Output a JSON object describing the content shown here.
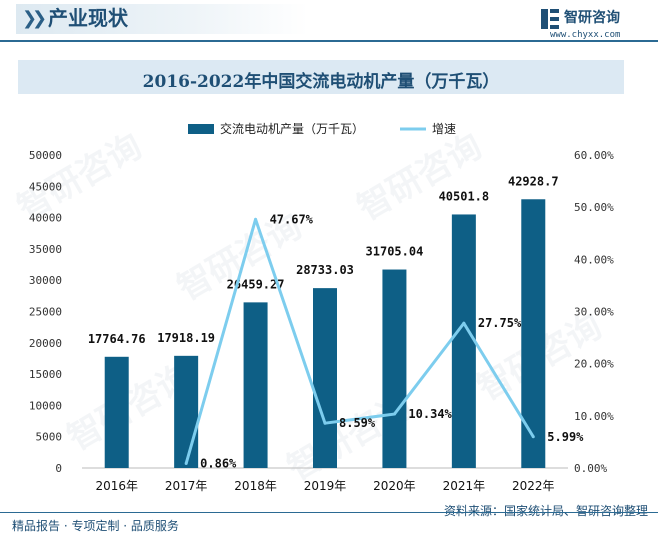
{
  "header": {
    "section_title": "产业现状",
    "brand_name": "智研咨询",
    "brand_url": "www.chyxx.com"
  },
  "colors": {
    "bar": "#0e5f86",
    "line": "#7dcdee",
    "text": "#1f4f75"
  },
  "chart_data": {
    "type": "bar",
    "title": "2016-2022年中国交流电动机产量（万千瓦）",
    "categories": [
      "2016年",
      "2017年",
      "2018年",
      "2019年",
      "2020年",
      "2021年",
      "2022年"
    ],
    "series": [
      {
        "name": "交流电动机产量（万千瓦）",
        "kind": "bar",
        "axis": "left",
        "values": [
          17764.76,
          17918.19,
          26459.27,
          28733.03,
          31705.04,
          40501.8,
          42928.7
        ],
        "labels": [
          "17764.76",
          "17918.19",
          "26459.27",
          "28733.03",
          "31705.04",
          "40501.8",
          "42928.7"
        ]
      },
      {
        "name": "增速",
        "kind": "line",
        "axis": "right",
        "values": [
          null,
          0.86,
          47.67,
          8.59,
          10.34,
          27.75,
          5.99
        ],
        "labels": [
          "",
          "0.86%",
          "47.67%",
          "8.59%",
          "10.34%",
          "27.75%",
          "5.99%"
        ]
      }
    ],
    "ylim_left": [
      0,
      50000
    ],
    "yticks_left": [
      "0",
      "5000",
      "10000",
      "15000",
      "20000",
      "25000",
      "30000",
      "35000",
      "40000",
      "45000",
      "50000"
    ],
    "ylim_right": [
      0,
      60
    ],
    "yticks_right": [
      "0.00%",
      "10.00%",
      "20.00%",
      "30.00%",
      "40.00%",
      "50.00%",
      "60.00%"
    ],
    "legend_position": "top-center",
    "grid": false
  },
  "footer": {
    "left": "精品报告 · 专项定制 · 品质服务",
    "right": "资料来源：国家统计局、智研咨询整理"
  }
}
